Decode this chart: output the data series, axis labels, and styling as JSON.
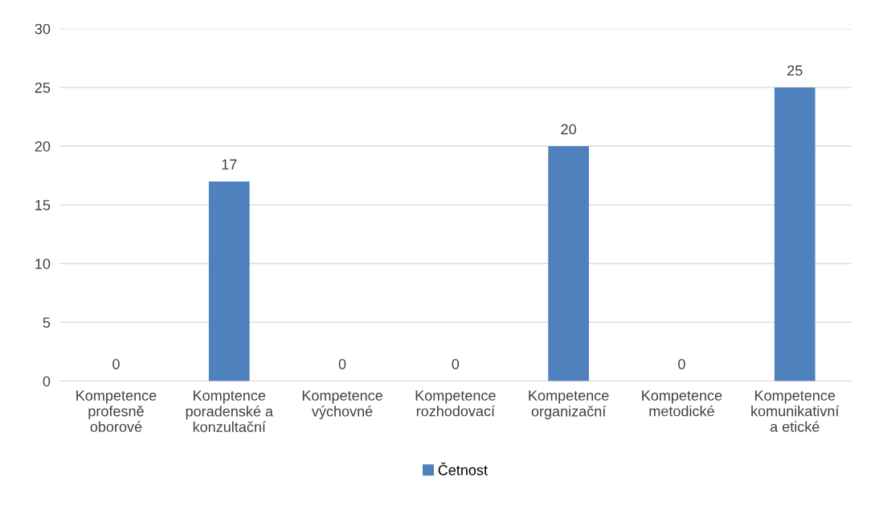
{
  "chart_data": {
    "type": "bar",
    "categories": [
      "Kompetence\nprofesně\noborové",
      "Komptence\nporadenské a\nkonzultační",
      "Kompetence\nvýchovné",
      "Kompetence\nrozhodovací",
      "Kompetence\norganizační",
      "Kompetence\nmetodické",
      "Kompetence\nkomunikativní\na etické"
    ],
    "series": [
      {
        "name": "Četnost",
        "color": "#4f81bd",
        "values": [
          0,
          17,
          0,
          0,
          20,
          0,
          25
        ]
      }
    ],
    "ylim": [
      0,
      30
    ],
    "yticks": [
      0,
      5,
      10,
      15,
      20,
      25,
      30
    ],
    "grid": "y",
    "legend": "bottom",
    "data_labels": true
  }
}
